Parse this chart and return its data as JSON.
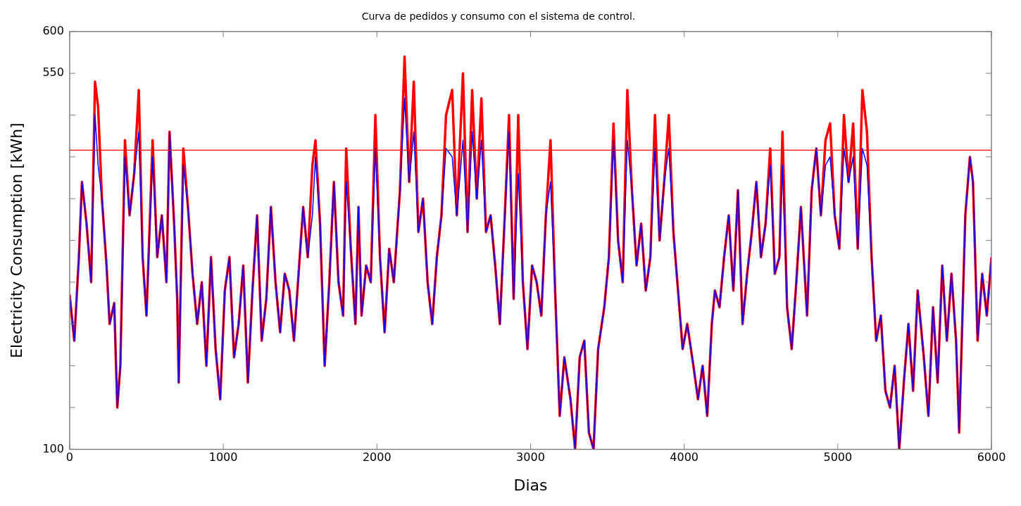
{
  "chart_data": {
    "type": "line",
    "title": "Curva de pedidos y consumo con el sistema de control.",
    "xlabel": "Dias",
    "ylabel": "Electricity Consumption [kWh]",
    "x": [
      0,
      30,
      60,
      80,
      110,
      140,
      165,
      185,
      210,
      240,
      260,
      290,
      310,
      330,
      360,
      390,
      420,
      450,
      475,
      500,
      540,
      570,
      600,
      630,
      650,
      680,
      700,
      710,
      740,
      770,
      800,
      830,
      860,
      890,
      920,
      950,
      980,
      1010,
      1040,
      1070,
      1100,
      1130,
      1160,
      1190,
      1220,
      1250,
      1280,
      1310,
      1340,
      1370,
      1400,
      1430,
      1460,
      1490,
      1520,
      1550,
      1580,
      1600,
      1630,
      1660,
      1690,
      1720,
      1750,
      1780,
      1800,
      1830,
      1860,
      1880,
      1900,
      1930,
      1960,
      1990,
      2020,
      2050,
      2080,
      2110,
      2150,
      2180,
      2210,
      2240,
      2270,
      2300,
      2330,
      2360,
      2390,
      2420,
      2450,
      2490,
      2520,
      2560,
      2590,
      2620,
      2650,
      2680,
      2710,
      2740,
      2770,
      2800,
      2830,
      2860,
      2890,
      2920,
      2950,
      2980,
      3010,
      3040,
      3070,
      3100,
      3130,
      3160,
      3190,
      3220,
      3260,
      3290,
      3320,
      3350,
      3380,
      3410,
      3440,
      3480,
      3510,
      3540,
      3570,
      3600,
      3630,
      3660,
      3690,
      3720,
      3750,
      3780,
      3810,
      3840,
      3870,
      3900,
      3930,
      3960,
      3990,
      4020,
      4060,
      4090,
      4120,
      4150,
      4180,
      4200,
      4230,
      4260,
      4290,
      4320,
      4350,
      4380,
      4410,
      4440,
      4470,
      4500,
      4530,
      4560,
      4590,
      4620,
      4640,
      4670,
      4700,
      4730,
      4760,
      4800,
      4830,
      4860,
      4890,
      4920,
      4950,
      4980,
      5010,
      5040,
      5070,
      5100,
      5130,
      5160,
      5190,
      5220,
      5250,
      5280,
      5310,
      5340,
      5370,
      5400,
      5430,
      5460,
      5490,
      5520,
      5560,
      5590,
      5620,
      5650,
      5680,
      5710,
      5740,
      5770,
      5790,
      5830,
      5860,
      5880,
      5910,
      5940,
      5970,
      6000
    ],
    "series": [
      {
        "color": "#ff0000",
        "values": [
          285,
          230,
          330,
          420,
          370,
          300,
          540,
          510,
          400,
          320,
          250,
          275,
          150,
          200,
          470,
          380,
          430,
          530,
          330,
          260,
          470,
          330,
          380,
          300,
          480,
          370,
          280,
          180,
          460,
          390,
          310,
          250,
          300,
          200,
          330,
          220,
          160,
          290,
          330,
          210,
          250,
          320,
          180,
          290,
          380,
          230,
          280,
          390,
          300,
          240,
          310,
          290,
          230,
          310,
          390,
          330,
          440,
          470,
          370,
          200,
          300,
          420,
          300,
          260,
          460,
          340,
          250,
          390,
          260,
          320,
          300,
          500,
          330,
          240,
          340,
          300,
          410,
          570,
          420,
          540,
          360,
          400,
          300,
          250,
          330,
          380,
          500,
          530,
          380,
          550,
          360,
          530,
          400,
          520,
          360,
          380,
          320,
          250,
          370,
          500,
          280,
          500,
          300,
          220,
          320,
          300,
          260,
          380,
          470,
          290,
          140,
          210,
          160,
          100,
          210,
          230,
          120,
          100,
          220,
          270,
          330,
          490,
          350,
          300,
          530,
          410,
          320,
          370,
          290,
          330,
          500,
          350,
          420,
          500,
          360,
          290,
          220,
          250,
          200,
          160,
          200,
          140,
          250,
          290,
          270,
          330,
          380,
          290,
          410,
          250,
          310,
          360,
          420,
          330,
          370,
          460,
          310,
          330,
          480,
          270,
          220,
          300,
          390,
          260,
          410,
          460,
          380,
          470,
          490,
          380,
          340,
          500,
          420,
          490,
          340,
          530,
          480,
          330,
          230,
          260,
          170,
          150,
          200,
          100,
          180,
          250,
          170,
          290,
          210,
          140,
          270,
          180,
          320,
          230,
          310,
          230,
          120,
          380,
          450,
          420,
          230,
          310,
          260,
          330
        ]
      },
      {
        "color": "#0000ff",
        "values": [
          285,
          230,
          330,
          420,
          370,
          300,
          500,
          440,
          400,
          320,
          250,
          275,
          150,
          200,
          450,
          380,
          430,
          480,
          330,
          260,
          450,
          330,
          380,
          300,
          480,
          370,
          280,
          180,
          440,
          390,
          310,
          250,
          300,
          200,
          330,
          220,
          160,
          290,
          330,
          210,
          250,
          320,
          180,
          290,
          380,
          230,
          280,
          390,
          300,
          240,
          310,
          290,
          230,
          310,
          390,
          330,
          380,
          450,
          370,
          200,
          300,
          420,
          300,
          260,
          420,
          340,
          250,
          390,
          260,
          320,
          300,
          460,
          330,
          240,
          340,
          300,
          410,
          520,
          420,
          480,
          360,
          400,
          300,
          250,
          330,
          380,
          460,
          450,
          380,
          470,
          360,
          480,
          400,
          470,
          360,
          380,
          320,
          250,
          370,
          480,
          280,
          430,
          300,
          220,
          320,
          300,
          260,
          380,
          420,
          290,
          140,
          210,
          160,
          100,
          210,
          230,
          120,
          100,
          220,
          270,
          330,
          470,
          350,
          300,
          470,
          410,
          320,
          370,
          290,
          330,
          460,
          350,
          420,
          460,
          360,
          290,
          220,
          250,
          200,
          160,
          200,
          140,
          250,
          290,
          270,
          330,
          380,
          290,
          410,
          250,
          310,
          360,
          420,
          330,
          370,
          440,
          310,
          330,
          440,
          270,
          220,
          300,
          390,
          260,
          410,
          460,
          380,
          440,
          450,
          380,
          340,
          460,
          420,
          450,
          340,
          460,
          440,
          330,
          230,
          260,
          170,
          150,
          200,
          100,
          180,
          250,
          170,
          290,
          210,
          140,
          270,
          180,
          320,
          230,
          310,
          230,
          120,
          380,
          450,
          420,
          230,
          310,
          260,
          330
        ]
      }
    ],
    "xlim": [
      0,
      6000
    ],
    "xticks": [
      0,
      1000,
      2000,
      3000,
      4000,
      5000,
      6000
    ],
    "ylim": [
      100,
      600
    ],
    "yticks": [
      {
        "value": 100,
        "label": "100"
      },
      {
        "value": 150,
        "label": null
      },
      {
        "value": 200,
        "label": null
      },
      {
        "value": 250,
        "label": null
      },
      {
        "value": 300,
        "label": null
      },
      {
        "value": 350,
        "label": null
      },
      {
        "value": 400,
        "label": null
      },
      {
        "value": 450,
        "label": null
      },
      {
        "value": 500,
        "label": null
      },
      {
        "value": 550,
        "label": "550"
      },
      {
        "value": 600,
        "label": "600"
      }
    ],
    "ref_lines": [
      {
        "axis": "y",
        "value": 458,
        "color": "#ff0000"
      }
    ],
    "grid": false,
    "legend": false,
    "marker": "none",
    "line_style": "solid"
  }
}
